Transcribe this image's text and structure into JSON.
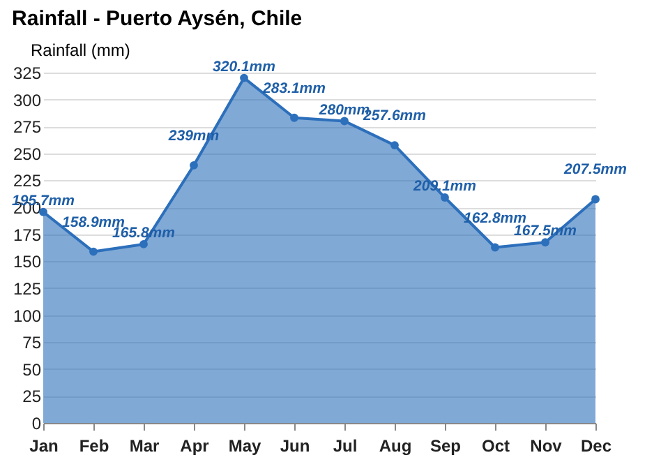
{
  "chart_data": {
    "type": "area",
    "title": "Rainfall - Puerto Aysén, Chile",
    "categories": [
      "Jan",
      "Feb",
      "Mar",
      "Apr",
      "May",
      "Jun",
      "Jul",
      "Aug",
      "Sep",
      "Oct",
      "Nov",
      "Dec"
    ],
    "series": [
      {
        "name": "Rainfall (mm)",
        "color": "#2c6fbb",
        "values": [
          195.7,
          158.9,
          165.8,
          239,
          320.1,
          283.1,
          280,
          257.6,
          209.1,
          162.8,
          167.5,
          207.5
        ],
        "value_labels": [
          "195.7mm",
          "158.9mm",
          "165.8mm",
          "239mm",
          "320.1mm",
          "283.1mm",
          "280mm",
          "257.6mm",
          "209.1mm",
          "162.8mm",
          "167.5mm",
          "207.5mm"
        ]
      }
    ],
    "ylim": [
      0,
      325
    ],
    "yticks": [
      0,
      25,
      50,
      75,
      100,
      125,
      150,
      175,
      200,
      225,
      250,
      275,
      300,
      325
    ],
    "grid": "y",
    "legend": "top left",
    "marker": "circle"
  }
}
